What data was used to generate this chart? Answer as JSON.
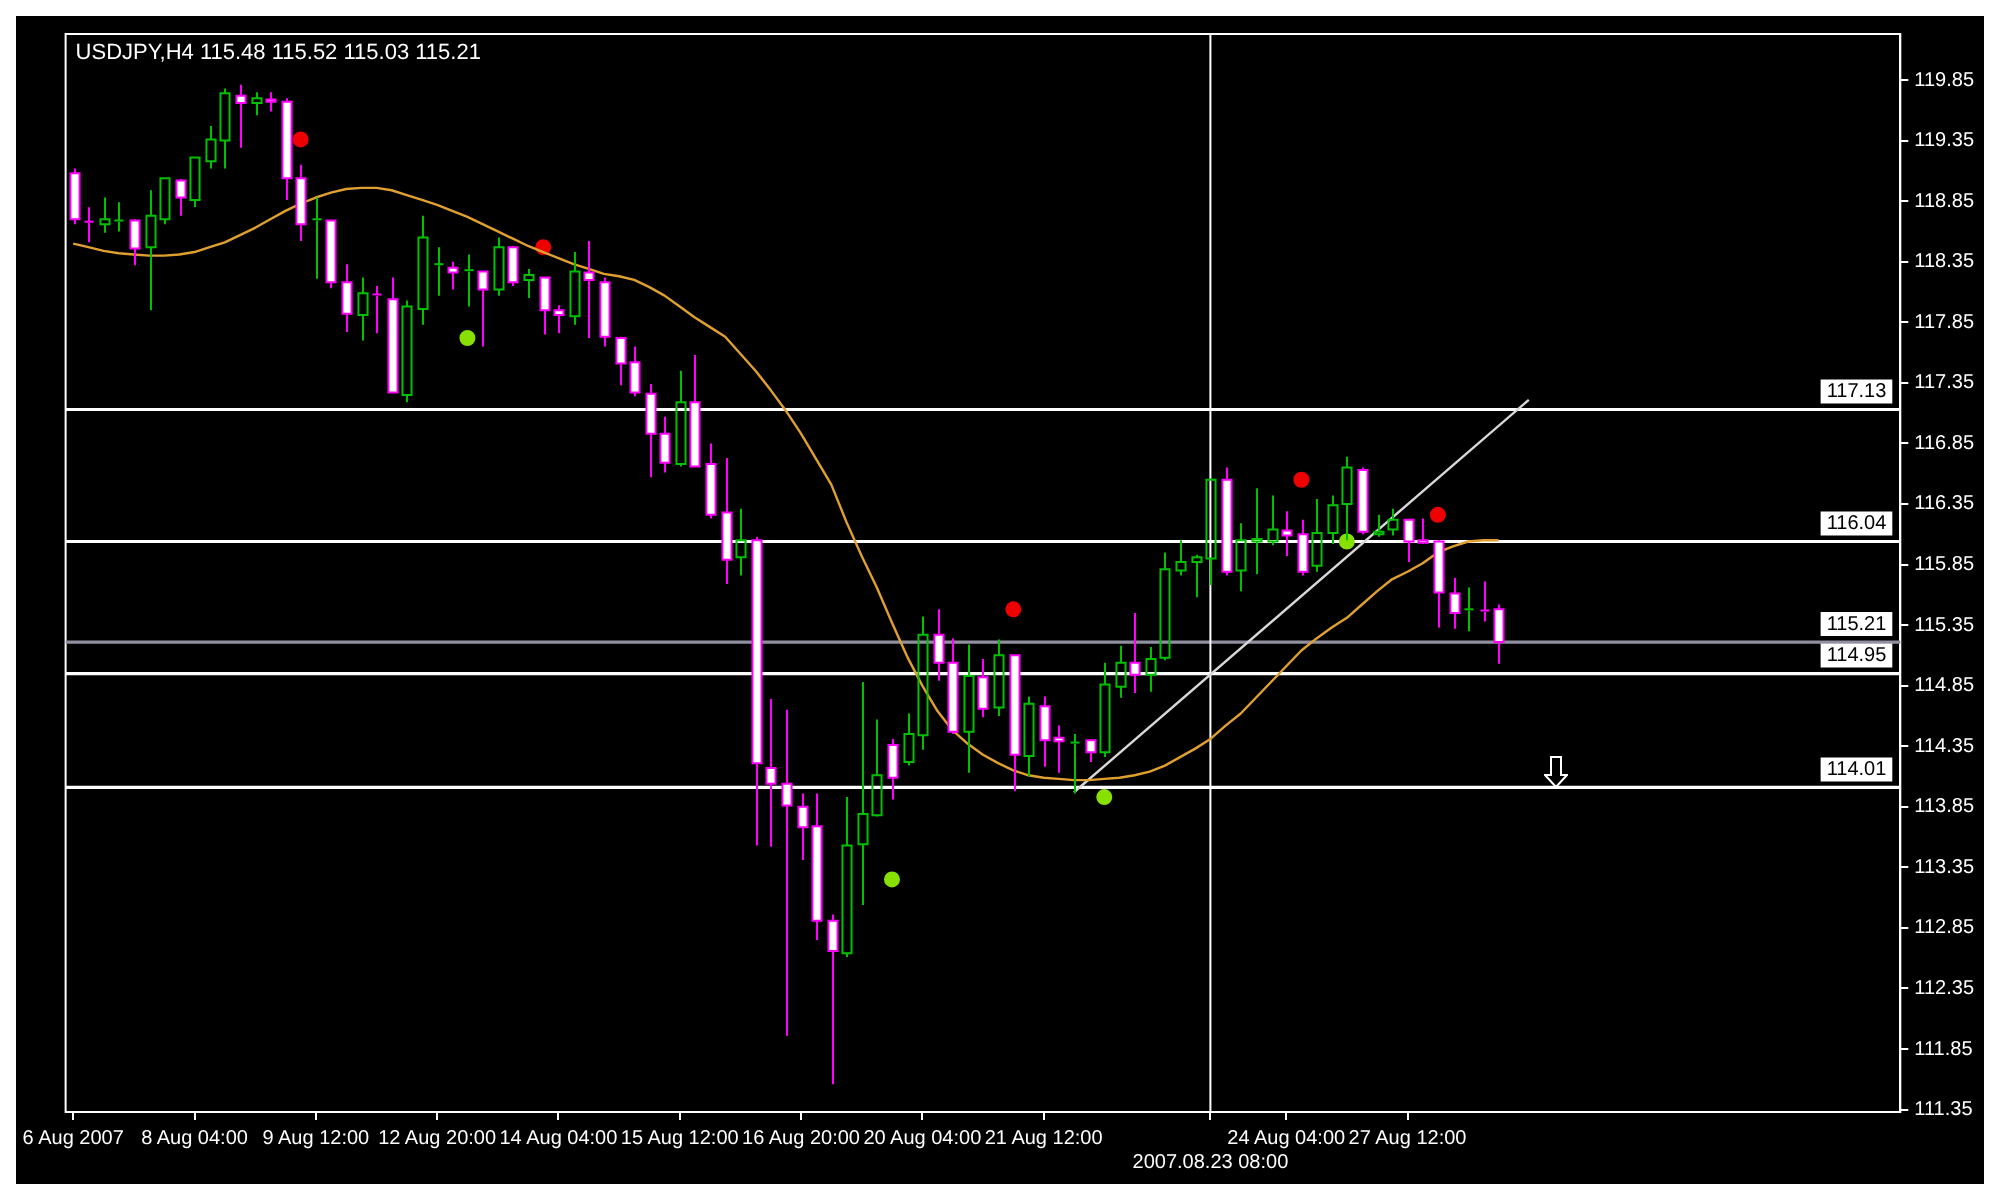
{
  "chart_data": {
    "type": "candlestick",
    "title": "USDJPY,H4 115.48 115.52 115.03 115.21",
    "categories": [
      "6 Aug 2007",
      null,
      null,
      null,
      null,
      null,
      null,
      null,
      "8 Aug 04:00",
      null,
      null,
      null,
      null,
      null,
      null,
      null,
      "9 Aug 12:00",
      null,
      null,
      null,
      null,
      null,
      null,
      null,
      "12 Aug 20:00",
      null,
      null,
      null,
      null,
      null,
      null,
      null,
      "14 Aug 04:00",
      null,
      null,
      null,
      null,
      null,
      null,
      null,
      "15 Aug 12:00",
      null,
      null,
      null,
      null,
      null,
      null,
      null,
      "16 Aug 20:00",
      null,
      null,
      null,
      null,
      null,
      null,
      null,
      "20 Aug 04:00",
      null,
      null,
      null,
      null,
      null,
      null,
      null,
      "21 Aug 12:00",
      null,
      null,
      null,
      null,
      null,
      null,
      null,
      null,
      null,
      null,
      "2007.08.23 08:00",
      null,
      null,
      null,
      null,
      "24 Aug 04:00",
      null,
      null,
      null,
      null,
      null,
      null,
      null,
      "27 Aug 12:00",
      null,
      null,
      null,
      null,
      null,
      null,
      null,
      null,
      null,
      null,
      null,
      null,
      null,
      null,
      null,
      null,
      null,
      null,
      null,
      null,
      null,
      null,
      null,
      null,
      null,
      null,
      null,
      null,
      null,
      null,
      null,
      null
    ],
    "ylim": [
      111.33,
      120.23
    ],
    "yticks": [
      111.35,
      111.85,
      112.35,
      112.85,
      113.35,
      113.85,
      114.35,
      114.85,
      115.35,
      115.85,
      116.35,
      116.85,
      117.35,
      117.85,
      118.35,
      118.85,
      119.35,
      119.85
    ],
    "series": [
      {
        "type": "candlestick",
        "ohlc": [
          [
            119.08,
            119.12,
            118.66,
            118.7
          ],
          [
            118.68,
            118.8,
            118.51,
            118.67
          ],
          [
            118.66,
            118.88,
            118.59,
            118.7
          ],
          [
            118.68,
            118.84,
            118.6,
            118.69
          ],
          [
            118.69,
            118.7,
            118.32,
            118.46
          ],
          [
            118.47,
            118.94,
            117.95,
            118.73
          ],
          [
            118.7,
            119.04,
            118.66,
            119.04
          ],
          [
            119.02,
            119.03,
            118.73,
            118.88
          ],
          [
            118.86,
            119.21,
            118.8,
            119.21
          ],
          [
            119.18,
            119.47,
            119.12,
            119.36
          ],
          [
            119.35,
            119.78,
            119.12,
            119.74
          ],
          [
            119.72,
            119.81,
            119.29,
            119.66
          ],
          [
            119.66,
            119.75,
            119.56,
            119.7
          ],
          [
            119.69,
            119.75,
            119.59,
            119.67
          ],
          [
            119.67,
            119.7,
            118.86,
            119.04
          ],
          [
            119.04,
            119.15,
            118.52,
            118.66
          ],
          [
            118.69,
            118.88,
            118.21,
            118.7
          ],
          [
            118.69,
            118.69,
            118.13,
            118.18
          ],
          [
            118.18,
            118.33,
            117.77,
            117.92
          ],
          [
            117.91,
            118.22,
            117.7,
            118.09
          ],
          [
            118.08,
            118.15,
            117.76,
            118.07
          ],
          [
            118.04,
            118.22,
            117.27,
            117.27
          ],
          [
            117.25,
            118.03,
            117.19,
            117.98
          ],
          [
            117.96,
            118.73,
            117.83,
            118.55
          ],
          [
            118.32,
            118.47,
            118.07,
            118.33
          ],
          [
            118.3,
            118.35,
            118.12,
            118.26
          ],
          [
            118.27,
            118.41,
            117.98,
            118.28
          ],
          [
            118.27,
            118.27,
            117.65,
            118.12
          ],
          [
            118.12,
            118.55,
            118.07,
            118.47
          ],
          [
            118.47,
            118.48,
            118.15,
            118.18
          ],
          [
            118.2,
            118.29,
            118.05,
            118.24
          ],
          [
            118.22,
            118.22,
            117.75,
            117.95
          ],
          [
            117.95,
            117.99,
            117.76,
            117.91
          ],
          [
            117.9,
            118.43,
            117.83,
            118.27
          ],
          [
            118.26,
            118.52,
            117.72,
            118.2
          ],
          [
            118.18,
            118.22,
            117.65,
            117.73
          ],
          [
            117.72,
            117.73,
            117.33,
            117.51
          ],
          [
            117.52,
            117.65,
            117.24,
            117.27
          ],
          [
            117.26,
            117.34,
            116.57,
            116.93
          ],
          [
            116.93,
            117.07,
            116.61,
            116.69
          ],
          [
            116.68,
            117.45,
            116.66,
            117.19
          ],
          [
            117.19,
            117.58,
            116.66,
            116.66
          ],
          [
            116.68,
            116.85,
            116.23,
            116.26
          ],
          [
            116.28,
            116.73,
            115.69,
            115.89
          ],
          [
            115.91,
            116.31,
            115.76,
            116.05
          ],
          [
            116.05,
            116.08,
            113.53,
            114.21
          ],
          [
            114.17,
            114.74,
            113.52,
            114.04
          ],
          [
            114.04,
            114.65,
            111.96,
            113.86
          ],
          [
            113.85,
            113.96,
            113.41,
            113.68
          ],
          [
            113.69,
            113.96,
            112.75,
            112.91
          ],
          [
            112.91,
            112.96,
            111.56,
            112.66
          ],
          [
            112.64,
            113.93,
            112.61,
            113.53
          ],
          [
            113.54,
            114.88,
            113.04,
            113.79
          ],
          [
            113.78,
            114.57,
            113.77,
            114.11
          ],
          [
            114.36,
            114.41,
            113.91,
            114.09
          ],
          [
            114.22,
            114.62,
            114.19,
            114.45
          ],
          [
            114.44,
            115.42,
            114.32,
            115.27
          ],
          [
            115.27,
            115.48,
            114.89,
            115.04
          ],
          [
            115.04,
            115.24,
            114.45,
            114.47
          ],
          [
            114.47,
            115.19,
            114.13,
            114.93
          ],
          [
            114.92,
            115.07,
            114.59,
            114.66
          ],
          [
            114.67,
            115.23,
            114.6,
            115.1
          ],
          [
            115.1,
            115.1,
            113.98,
            114.28
          ],
          [
            114.27,
            114.76,
            114.1,
            114.7
          ],
          [
            114.68,
            114.76,
            114.18,
            114.4
          ],
          [
            114.42,
            114.52,
            114.13,
            114.39
          ],
          [
            114.37,
            114.45,
            113.96,
            114.38
          ],
          [
            114.4,
            114.4,
            114.22,
            114.3
          ],
          [
            114.3,
            115.04,
            114.26,
            114.86
          ],
          [
            114.84,
            115.18,
            114.75,
            115.04
          ],
          [
            115.04,
            115.45,
            114.79,
            114.94
          ],
          [
            114.94,
            115.17,
            114.8,
            115.07
          ],
          [
            115.08,
            115.95,
            115.06,
            115.81
          ],
          [
            115.8,
            116.05,
            115.76,
            115.87
          ],
          [
            115.87,
            115.93,
            115.58,
            115.91
          ],
          [
            115.9,
            116.56,
            115.68,
            116.55
          ],
          [
            116.55,
            116.65,
            115.76,
            115.79
          ],
          [
            115.8,
            116.19,
            115.63,
            116.05
          ],
          [
            116.04,
            116.48,
            115.77,
            116.06
          ],
          [
            116.04,
            116.42,
            116.01,
            116.14
          ],
          [
            116.13,
            116.29,
            115.92,
            116.09
          ],
          [
            116.1,
            116.22,
            115.76,
            115.79
          ],
          [
            115.84,
            116.39,
            115.79,
            116.11
          ],
          [
            116.11,
            116.42,
            116.02,
            116.34
          ],
          [
            116.35,
            116.74,
            116.05,
            116.65
          ],
          [
            116.63,
            116.65,
            116.1,
            116.12
          ],
          [
            116.1,
            116.26,
            116.08,
            116.12
          ],
          [
            116.14,
            116.31,
            116.09,
            116.22
          ],
          [
            116.22,
            116.22,
            115.87,
            116.04
          ],
          [
            116.05,
            116.23,
            116.02,
            116.03
          ],
          [
            116.04,
            116.05,
            115.33,
            115.62
          ],
          [
            115.61,
            115.74,
            115.32,
            115.45
          ],
          [
            115.47,
            115.66,
            115.3,
            115.48
          ],
          [
            115.47,
            115.71,
            115.38,
            115.46
          ],
          [
            115.48,
            115.52,
            115.03,
            115.21
          ],
          null,
          null,
          null,
          null,
          null,
          null,
          null,
          null,
          null,
          null,
          null,
          null,
          null,
          null,
          null,
          null,
          null,
          null,
          null,
          null,
          null,
          null,
          null,
          null,
          null,
          null
        ],
        "colors": [
          "#ff00ff",
          "#ff00ff",
          "#00c000",
          "#00c000",
          "#ff00ff",
          "#00c000",
          "#00c000",
          "#ff00ff",
          "#00c000",
          "#00c000",
          "#00c000",
          "#ff00ff",
          "#00c000",
          "#ff00ff",
          "#ff00ff",
          "#ff00ff",
          "#00c000",
          "#ff00ff",
          "#ff00ff",
          "#00c000",
          "#ff00ff",
          "#ff00ff",
          "#00c000",
          "#00c000",
          "#00c000",
          "#ff00ff",
          "#00c000",
          "#ff00ff",
          "#00c000",
          "#ff00ff",
          "#00c000",
          "#ff00ff",
          "#ff00ff",
          "#00c000",
          "#ff00ff",
          "#ff00ff",
          "#ff00ff",
          "#ff00ff",
          "#ff00ff",
          "#ff00ff",
          "#00c000",
          "#ff00ff",
          "#ff00ff",
          "#ff00ff",
          "#00c000",
          "#ff00ff",
          "#ff00ff",
          "#ff00ff",
          "#ff00ff",
          "#ff00ff",
          "#ff00ff",
          "#00c000",
          "#00c000",
          "#00c000",
          "#ff00ff",
          "#00c000",
          "#00c000",
          "#ff00ff",
          "#ff00ff",
          "#00c000",
          "#ff00ff",
          "#00c000",
          "#ff00ff",
          "#00c000",
          "#ff00ff",
          "#ff00ff",
          "#00c000",
          "#ff00ff",
          "#00c000",
          "#00c000",
          "#ff00ff",
          "#00c000",
          "#00c000",
          "#00c000",
          "#00c000",
          "#00c000",
          "#ff00ff",
          "#00c000",
          "#00c000",
          "#00c000",
          "#ff00ff",
          "#ff00ff",
          "#00c000",
          "#00c000",
          "#00c000",
          "#ff00ff",
          "#00c000",
          "#00c000",
          "#ff00ff",
          "#ff00ff",
          "#ff00ff",
          "#ff00ff",
          "#00c000",
          "#ff00ff",
          "#ff00ff",
          null,
          null,
          null,
          null,
          null,
          null,
          null,
          null,
          null,
          null,
          null,
          null,
          null,
          null,
          null,
          null,
          null,
          null,
          null,
          null,
          null,
          null,
          null,
          null,
          null,
          null
        ]
      },
      {
        "type": "line",
        "color": "#e0a030",
        "values": [
          118.5,
          118.47,
          118.44,
          118.42,
          118.41,
          118.4,
          118.4,
          118.41,
          118.43,
          118.47,
          118.51,
          118.57,
          118.63,
          118.7,
          118.77,
          118.83,
          118.88,
          118.92,
          118.95,
          118.96,
          118.96,
          118.94,
          118.9,
          118.86,
          118.82,
          118.77,
          118.72,
          118.66,
          118.6,
          118.54,
          118.48,
          118.43,
          118.38,
          118.33,
          118.29,
          118.25,
          118.23,
          118.2,
          118.14,
          118.07,
          117.98,
          117.89,
          117.81,
          117.73,
          117.59,
          117.45,
          117.29,
          117.12,
          116.93,
          116.72,
          116.51,
          116.2,
          115.92,
          115.66,
          115.37,
          115.09,
          114.85,
          114.64,
          114.48,
          114.37,
          114.28,
          114.21,
          114.15,
          114.11,
          114.09,
          114.08,
          114.07,
          114.07,
          114.08,
          114.09,
          114.11,
          114.14,
          114.19,
          114.26,
          114.33,
          114.41,
          114.52,
          114.62,
          114.75,
          114.88,
          115.01,
          115.14,
          115.24,
          115.33,
          115.41,
          115.52,
          115.63,
          115.73,
          115.79,
          115.86,
          115.95,
          116.0,
          116.04,
          116.05,
          116.05,
          null,
          null,
          null,
          null,
          null,
          null,
          null,
          null,
          null,
          null,
          null,
          null,
          null,
          null,
          null,
          null,
          null,
          null,
          null,
          null,
          null,
          null,
          null,
          null,
          null,
          null
        ]
      },
      {
        "type": "line",
        "color": "#d8d8d8",
        "values": [
          null,
          null,
          null,
          null,
          null,
          null,
          null,
          null,
          null,
          null,
          null,
          null,
          null,
          null,
          null,
          null,
          null,
          null,
          null,
          null,
          null,
          null,
          null,
          null,
          null,
          null,
          null,
          null,
          null,
          null,
          null,
          null,
          null,
          null,
          null,
          null,
          null,
          null,
          null,
          null,
          null,
          null,
          null,
          null,
          null,
          null,
          null,
          null,
          null,
          null,
          null,
          null,
          null,
          null,
          null,
          null,
          null,
          null,
          null,
          null,
          null,
          null,
          null,
          null,
          null,
          null,
          113.97,
          null,
          null,
          null,
          null,
          null,
          null,
          null,
          null,
          null,
          null,
          null,
          null,
          null,
          null,
          null,
          null,
          null,
          null,
          null,
          null,
          null,
          null,
          null,
          null,
          null,
          null,
          null,
          null,
          null,
          117.21,
          null,
          null,
          null,
          null,
          null,
          null,
          null,
          null,
          null,
          null,
          null,
          null,
          null,
          null,
          null,
          null,
          null,
          null,
          null,
          null,
          null,
          null,
          null,
          null
        ]
      },
      {
        "type": "scatter",
        "color": "#ee0000",
        "marker": "circle",
        "values": [
          null,
          null,
          null,
          null,
          null,
          null,
          null,
          null,
          null,
          null,
          null,
          null,
          null,
          null,
          null,
          119.36,
          null,
          null,
          null,
          null,
          null,
          null,
          null,
          null,
          null,
          null,
          null,
          null,
          null,
          null,
          null,
          118.47,
          null,
          null,
          null,
          null,
          null,
          null,
          null,
          null,
          null,
          null,
          null,
          null,
          null,
          null,
          null,
          null,
          null,
          null,
          null,
          null,
          null,
          null,
          null,
          null,
          null,
          null,
          null,
          null,
          null,
          null,
          115.48,
          null,
          null,
          null,
          null,
          null,
          null,
          null,
          null,
          null,
          null,
          null,
          null,
          null,
          null,
          null,
          null,
          null,
          null,
          116.55,
          null,
          null,
          null,
          null,
          null,
          null,
          null,
          null,
          116.26,
          null,
          null,
          null,
          null,
          null,
          null,
          null,
          null,
          null,
          null,
          null,
          null,
          null,
          null,
          null,
          null,
          null,
          null,
          null,
          null,
          null,
          null,
          null,
          null,
          null,
          null,
          null,
          null,
          null,
          null
        ]
      },
      {
        "type": "scatter",
        "color": "#88e000",
        "marker": "circle",
        "values": [
          null,
          null,
          null,
          null,
          null,
          null,
          null,
          null,
          null,
          null,
          null,
          null,
          null,
          null,
          null,
          null,
          null,
          null,
          null,
          null,
          null,
          null,
          null,
          null,
          null,
          null,
          117.72,
          null,
          null,
          null,
          null,
          null,
          null,
          null,
          null,
          null,
          null,
          null,
          null,
          null,
          null,
          null,
          null,
          null,
          null,
          null,
          null,
          null,
          null,
          null,
          null,
          null,
          null,
          null,
          113.25,
          null,
          null,
          null,
          null,
          null,
          null,
          null,
          null,
          null,
          null,
          null,
          null,
          null,
          113.93,
          null,
          null,
          null,
          null,
          null,
          null,
          null,
          null,
          null,
          null,
          null,
          null,
          null,
          null,
          null,
          116.04,
          null,
          null,
          null,
          null,
          null,
          null,
          null,
          null,
          null,
          null,
          null,
          null,
          null,
          null,
          null,
          null,
          null,
          null,
          null,
          null,
          null,
          null,
          null,
          null,
          null,
          null,
          null,
          null,
          null,
          null,
          null,
          null,
          null,
          null,
          null,
          null
        ]
      }
    ],
    "ref_lines": [
      {
        "axis": "y",
        "value": 117.13,
        "label": "117.13",
        "color": "#ffffff"
      },
      {
        "axis": "y",
        "value": 116.04,
        "label": "116.04",
        "color": "#ffffff"
      },
      {
        "axis": "y",
        "value": 115.21,
        "label": "115.21",
        "color": "#9090a0"
      },
      {
        "axis": "y",
        "value": 114.95,
        "label": "114.95",
        "color": "#ffffff"
      },
      {
        "axis": "y",
        "value": 114.01,
        "label": "114.01",
        "color": "#ffffff"
      },
      {
        "axis": "x",
        "value": "2007.08.23 08:00",
        "color": "#ffffff"
      }
    ]
  }
}
